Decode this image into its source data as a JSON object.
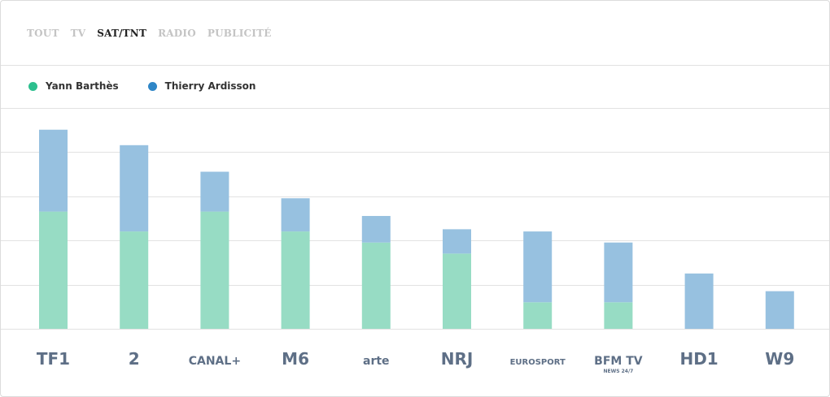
{
  "tabs": [
    {
      "label": "TOUT",
      "active": false
    },
    {
      "label": "TV",
      "active": false
    },
    {
      "label": "SAT/TNT",
      "active": true
    },
    {
      "label": "RADIO",
      "active": false
    },
    {
      "label": "PUBLICITÉ",
      "active": false
    }
  ],
  "colors": {
    "series_1": "#97dcc4",
    "series_1_dot": "#2dbf8e",
    "series_2": "#97c1e0",
    "series_2_dot": "#2f86c7",
    "logo": "#5e6f86"
  },
  "chart_data": {
    "type": "bar",
    "stacked": true,
    "categories": [
      "TF1",
      "France 2",
      "CANAL+",
      "M6",
      "arte",
      "NRJ 12",
      "EUROSPORT",
      "BFM TV",
      "HD1",
      "W9"
    ],
    "category_logos": [
      {
        "icon": "tf1-logo",
        "text": "TF1"
      },
      {
        "icon": "france2-logo",
        "text": "2"
      },
      {
        "icon": "canal-plus-logo",
        "text": "CANAL+"
      },
      {
        "icon": "m6-logo",
        "text": "M6"
      },
      {
        "icon": "arte-logo",
        "text": "arte"
      },
      {
        "icon": "nrj12-logo",
        "text": "NRJ"
      },
      {
        "icon": "eurosport-logo",
        "text": "EUROSPORT"
      },
      {
        "icon": "bfmtv-logo",
        "text": "BFM TV",
        "subtext": "NEWS 24/7"
      },
      {
        "icon": "hd1-logo",
        "text": "HD1"
      },
      {
        "icon": "w9-logo",
        "text": "W9"
      }
    ],
    "series": [
      {
        "name": "Yann Barthès",
        "values": [
          2.65,
          2.2,
          2.65,
          2.2,
          1.95,
          1.7,
          0.6,
          0.6,
          0,
          0
        ]
      },
      {
        "name": "Thierry Ardisson",
        "values": [
          1.85,
          1.95,
          0.9,
          0.75,
          0.6,
          0.55,
          1.6,
          1.35,
          1.25,
          0.85
        ]
      }
    ],
    "ylim": [
      0,
      5
    ],
    "grid": true,
    "legend_position": "top-left"
  }
}
